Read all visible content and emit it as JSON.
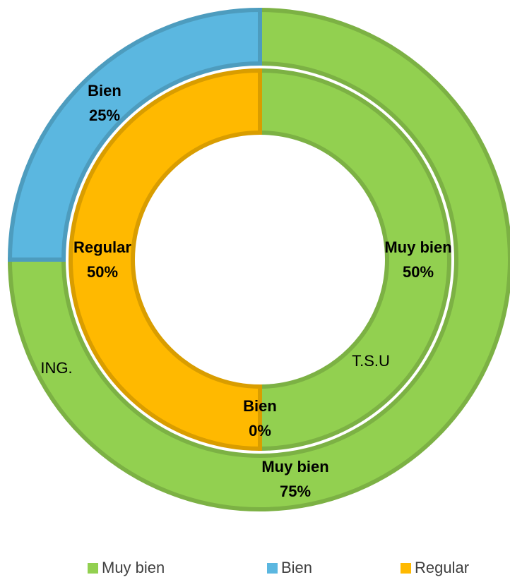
{
  "chart_data": {
    "type": "donut",
    "categories": [
      "Muy bien",
      "Bien",
      "Regular"
    ],
    "colors": [
      "#92d050",
      "#5bb7e0",
      "#ffb900"
    ],
    "rings": [
      {
        "name": "ING.",
        "values": [
          75,
          25,
          null
        ],
        "value_labels": [
          "75%",
          "25%",
          null
        ]
      },
      {
        "name": "T.S.U",
        "values": [
          50,
          0,
          50
        ],
        "value_labels": [
          "50%",
          "0%",
          "50%"
        ]
      }
    ],
    "legend": "bottom"
  }
}
